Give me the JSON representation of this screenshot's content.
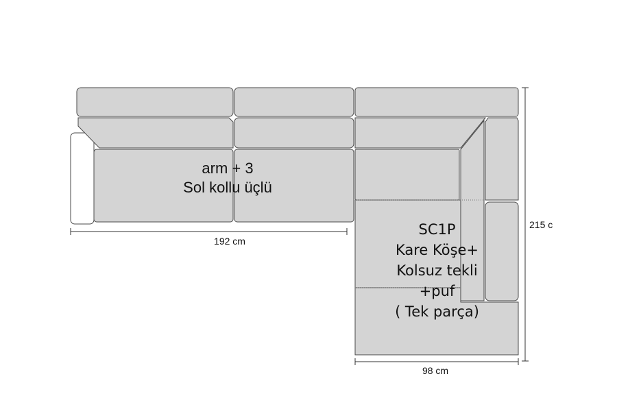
{
  "labels": {
    "left_module_line1": "arm + 3",
    "left_module_line2": "Sol kollu üçlü",
    "corner_module_lines": [
      "SC1P",
      "Kare Köşe+",
      "Kolsuz tekli",
      "+puf",
      "( Tek parça)"
    ]
  },
  "dimensions": {
    "width_left": "192 cm",
    "width_corner": "98 cm",
    "depth_right": "215 c"
  },
  "colors": {
    "fabric": "#d4d4d4",
    "outline": "#4a4a4a",
    "arm": "#ffffff",
    "text": "#111111",
    "dimension_line": "#333333"
  }
}
